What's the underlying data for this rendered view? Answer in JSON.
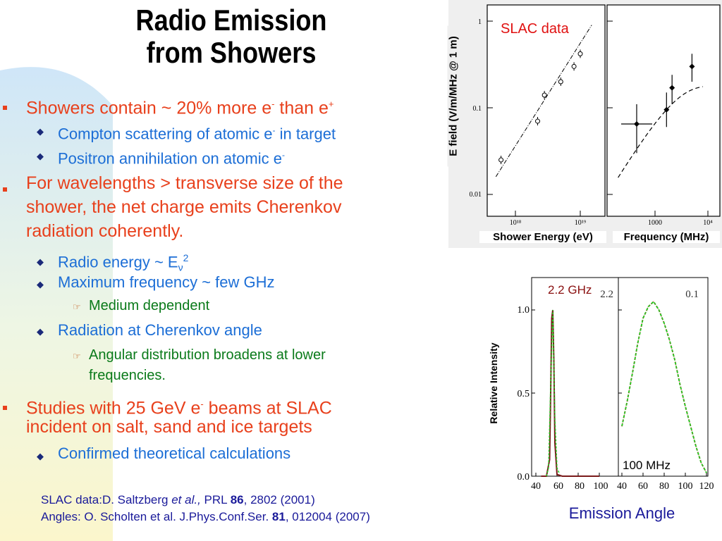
{
  "title": {
    "line1": "Radio Emission",
    "line2": "from Showers"
  },
  "bullets": {
    "b1": {
      "pre": "Showers contain ~ 20% more e",
      "sup1": "-",
      "mid": " than e",
      "sup2": "+"
    },
    "b1a": {
      "pre": "Compton scattering of atomic e",
      "sup": "-",
      "post": " in target"
    },
    "b1b": {
      "pre": "Positron annihilation on atomic e",
      "sup": "-"
    },
    "b2": {
      "line1": "For wavelengths > transverse size of the",
      "line2": "shower, the net charge emits Cherenkov",
      "line3": "radiation coherently."
    },
    "b2a": {
      "pre": "Radio energy ~ E",
      "sub": "ν",
      "sup": "2"
    },
    "b2b": "Maximum frequency ~ few GHz",
    "b2b1": "Medium dependent",
    "b2c": "Radiation at Cherenkov angle",
    "b2c1": {
      "line1": "Angular distribution broadens at lower",
      "line2": "frequencies."
    },
    "b3": {
      "pre": "Studies with 25 GeV e",
      "sup": "-",
      "post": " beams at SLAC",
      "line2": "incident on salt, sand and ice targets"
    },
    "b3a": "Confirmed theoretical calculations"
  },
  "references": {
    "ref1": {
      "pre": "SLAC data:D. Saltzberg ",
      "etal": "et al.,",
      "journal": " PRL ",
      "vol": "86",
      "post": ", 2802 (2001)"
    },
    "ref2": {
      "pre": "Angles: O. Scholten et al. J.Phys.Conf.Ser. ",
      "vol": "81",
      "post": ", 012004 (2007)"
    }
  },
  "slac_figure": {
    "annotation": "SLAC data",
    "ylabel": "E field (V/m/MHz @ 1 m)",
    "xlabel_left": "Shower Energy (eV)",
    "xlabel_right": "Frequency (MHz)",
    "yticks": [
      "1",
      "0.1",
      "0.01"
    ],
    "xticks_left": [
      "10¹⁸",
      "10¹⁹"
    ],
    "xticks_right": [
      "1000",
      "10⁴"
    ]
  },
  "angle_figure": {
    "annotation_left": "2.2 GHz",
    "annotation_left_print": "2.2",
    "annotation_right": "100 MHz",
    "annotation_right_print": "0.1",
    "ylabel": "Relative Intensity",
    "xlabel": "Emission Angle",
    "yticks": [
      "1.0",
      "0.5",
      "0.0"
    ],
    "xticks_left": [
      "40",
      "60",
      "80",
      "100"
    ],
    "xticks_right": [
      "40",
      "60",
      "80",
      "100",
      "120"
    ]
  },
  "colors": {
    "level1": "#e8401c",
    "level2": "#1c6ed6",
    "level3": "#0a7a1a",
    "annotation_red": "#e01010",
    "annotation_darkred": "#8a1010"
  },
  "chart_data": [
    {
      "type": "scatter",
      "title": "",
      "xlabel": "Shower Energy (eV)",
      "ylabel": "E field (V/m/MHz @ 1 m)",
      "xscale": "log",
      "yscale": "log",
      "xlim": [
        3e+17,
        2e+19
      ],
      "ylim": [
        0.005,
        1.5
      ],
      "series": [
        {
          "x": [
            6e+17,
            2.2e+18,
            2.8e+18,
            5e+18,
            8e+18,
            1e+19
          ],
          "y": [
            0.025,
            0.07,
            0.14,
            0.2,
            0.3,
            0.42
          ]
        }
      ]
    },
    {
      "type": "scatter",
      "title": "",
      "xlabel": "Frequency (MHz)",
      "ylabel": "E field (V/m/MHz @ 1 m)",
      "xscale": "log",
      "yscale": "log",
      "xlim": [
        150,
        12000
      ],
      "ylim": [
        0.005,
        1.5
      ],
      "series": [
        {
          "x": [
            450,
            1650,
            2100,
            5000
          ],
          "y": [
            0.065,
            0.095,
            0.17,
            0.3
          ]
        }
      ]
    },
    {
      "type": "line",
      "title": "",
      "xlabel": "Emission Angle",
      "ylabel": "Relative Intensity",
      "xlim": [
        40,
        100
      ],
      "ylim": [
        0,
        1.1
      ],
      "series": [
        {
          "x": [
            45,
            50,
            53,
            54,
            55,
            56,
            57,
            58,
            60,
            65,
            70,
            80,
            100
          ],
          "y": [
            0,
            0,
            0.1,
            0.5,
            0.95,
            1.0,
            0.7,
            0.2,
            0.01,
            0,
            0,
            0,
            0
          ]
        }
      ]
    },
    {
      "type": "line",
      "title": "",
      "xlabel": "Emission Angle",
      "ylabel": "Relative Intensity",
      "xlim": [
        40,
        120
      ],
      "ylim": [
        0,
        1.1
      ],
      "series": [
        {
          "x": [
            40,
            45,
            50,
            55,
            60,
            65,
            70,
            75,
            80,
            85,
            90,
            95,
            100,
            105,
            110,
            115,
            120
          ],
          "y": [
            0.3,
            0.45,
            0.62,
            0.8,
            0.95,
            1.02,
            1.05,
            1.0,
            0.92,
            0.82,
            0.7,
            0.55,
            0.42,
            0.3,
            0.18,
            0.08,
            0.02
          ]
        }
      ]
    }
  ]
}
